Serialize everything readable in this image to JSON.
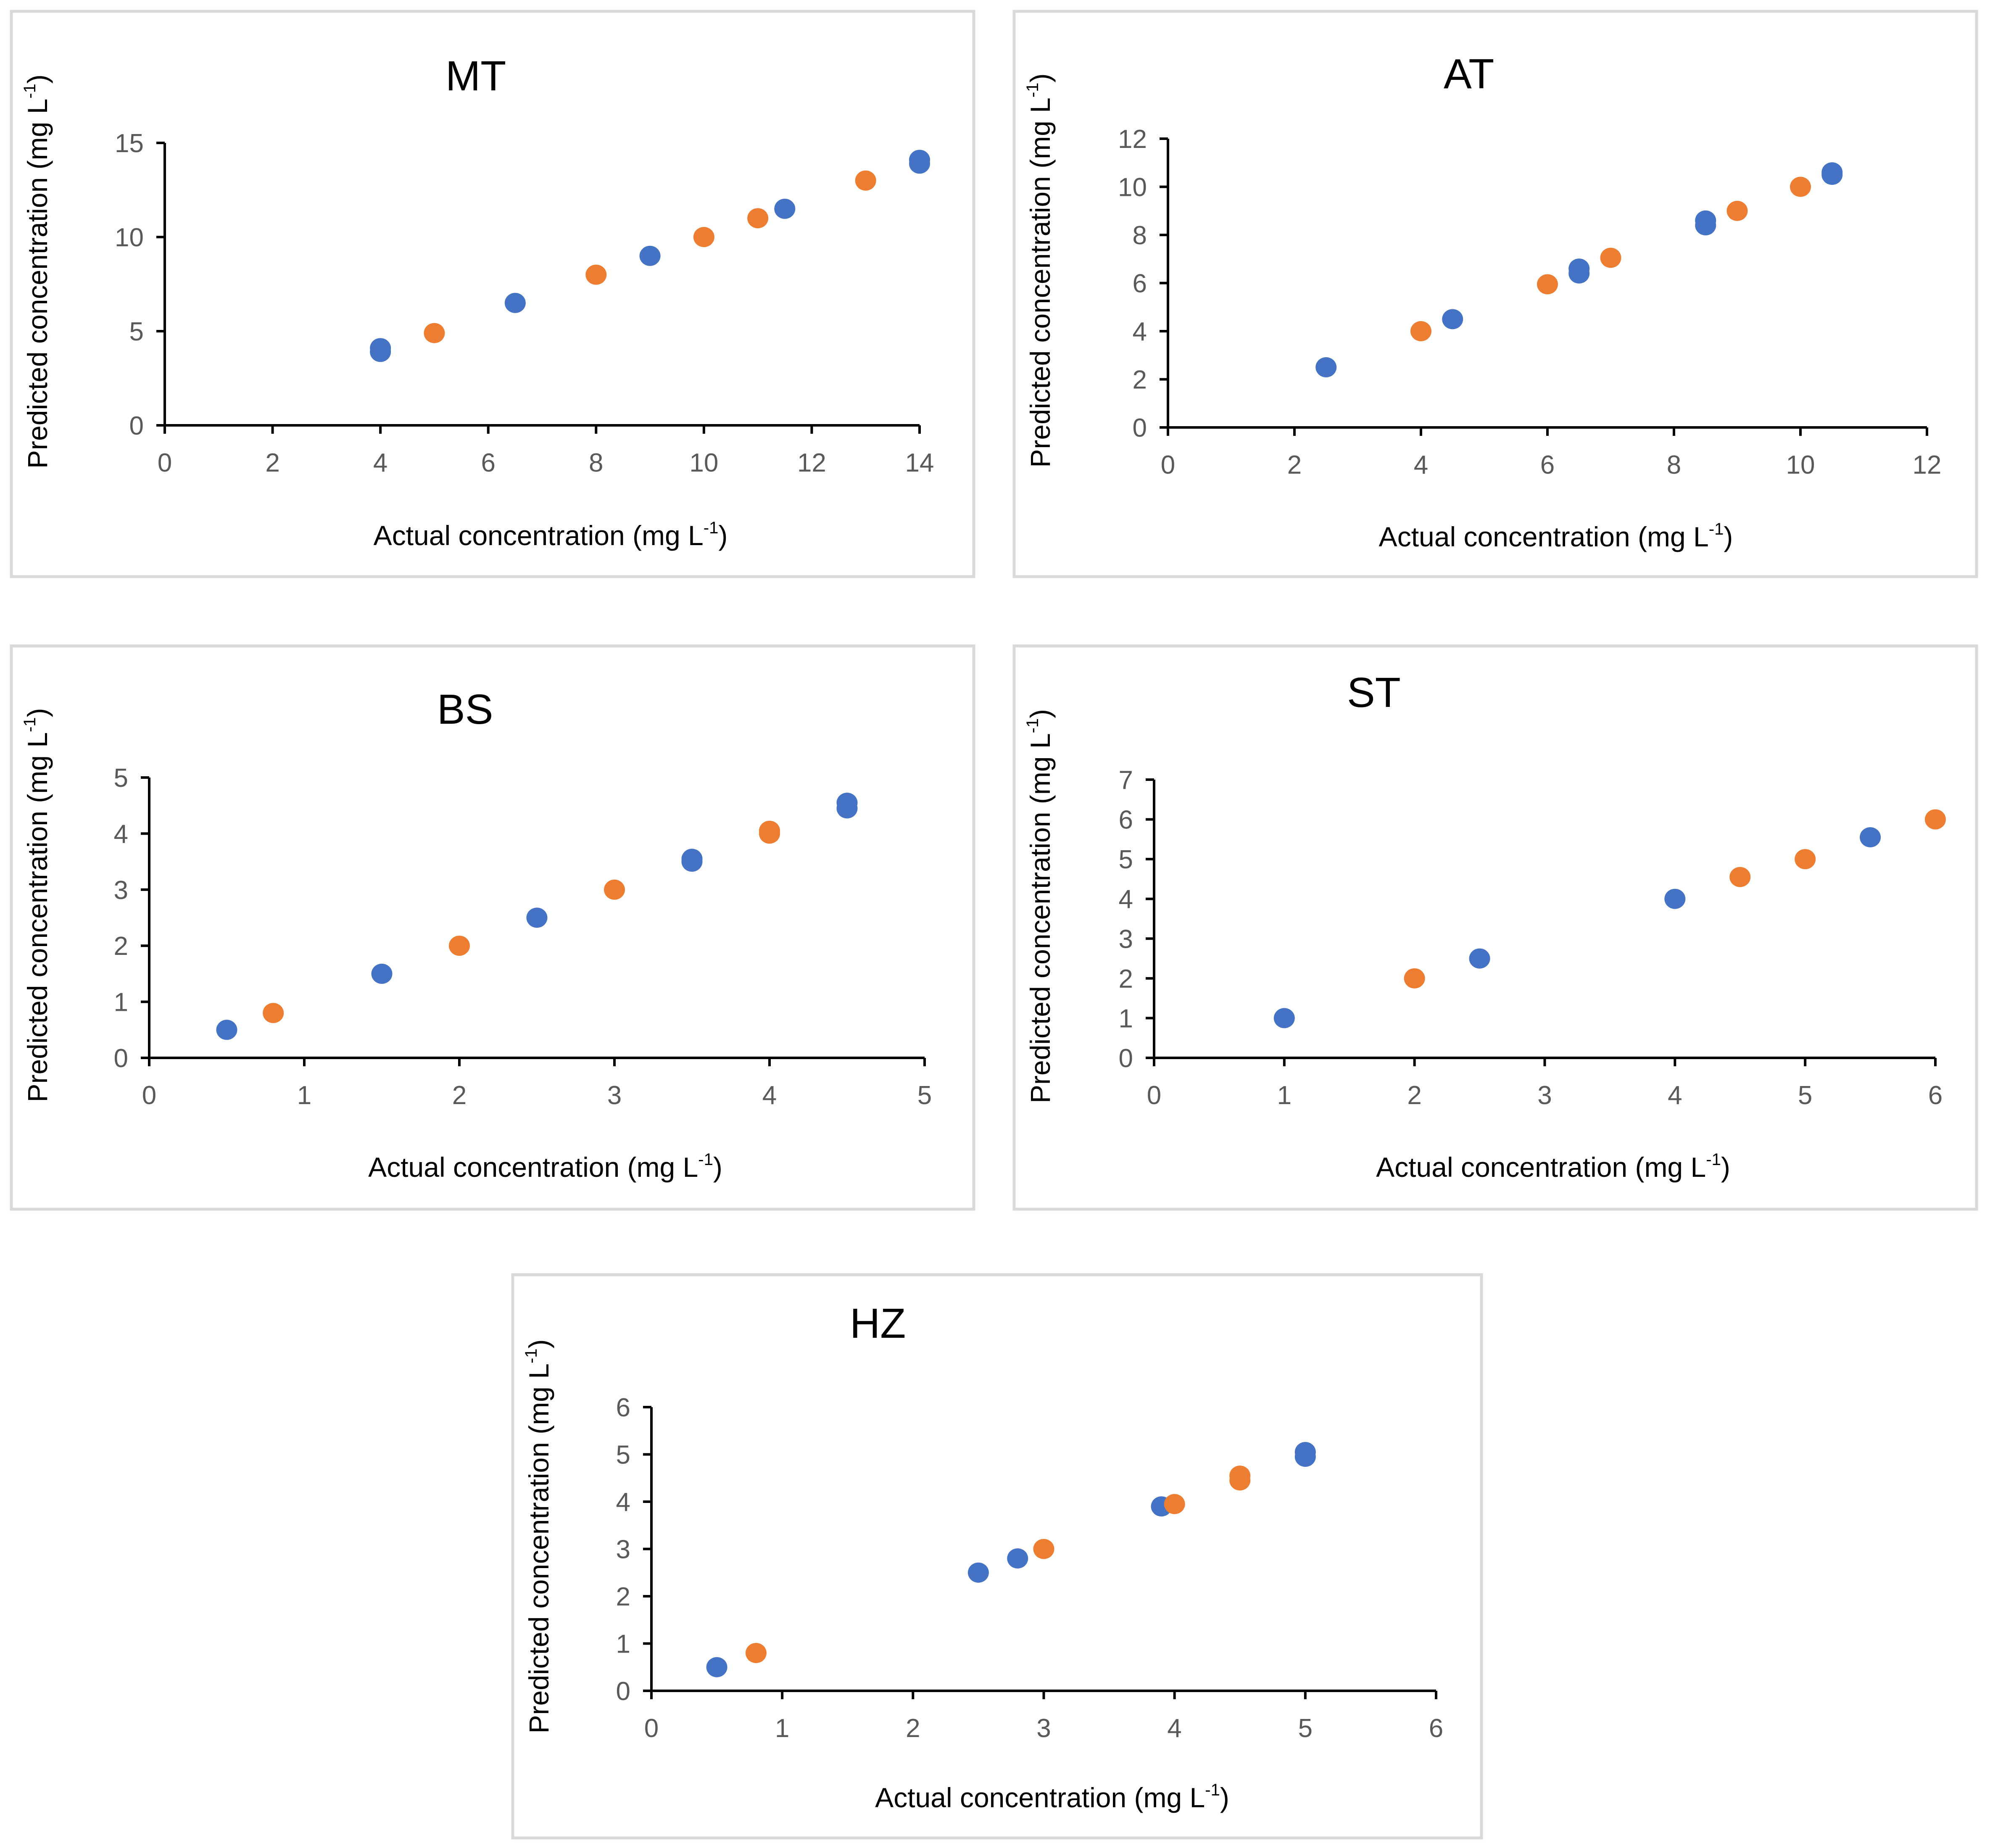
{
  "figure": {
    "colors": {
      "series_a": "#4472C4",
      "series_b": "#ED7D31"
    }
  },
  "chart_data": [
    {
      "type": "scatter",
      "title": "MT",
      "xlabel": "Actual concentration (mg L",
      "ylabel": "Predicted concentration (mg L",
      "label_superscript": "-1",
      "label_close": ")",
      "xlim": [
        0,
        14
      ],
      "ylim": [
        0,
        15
      ],
      "xticks": [
        0,
        2,
        4,
        6,
        8,
        10,
        12,
        14
      ],
      "yticks": [
        0,
        5,
        10,
        15
      ],
      "series": [
        {
          "name": "blue",
          "color": "#4472C4",
          "points": [
            [
              4,
              4.1
            ],
            [
              4,
              3.9
            ],
            [
              6.5,
              6.5
            ],
            [
              9,
              9
            ],
            [
              11.5,
              11.5
            ],
            [
              14,
              14.1
            ],
            [
              14,
              13.9
            ]
          ]
        },
        {
          "name": "orange",
          "color": "#ED7D31",
          "points": [
            [
              5,
              4.9
            ],
            [
              8,
              8
            ],
            [
              10,
              10
            ],
            [
              11,
              11
            ],
            [
              13,
              13
            ]
          ]
        }
      ]
    },
    {
      "type": "scatter",
      "title": "AT",
      "xlabel": "Actual concentration (mg L",
      "ylabel": "Predicted concentration (mg L",
      "label_superscript": "-1",
      "label_close": ")",
      "xlim": [
        0,
        12
      ],
      "ylim": [
        0,
        12
      ],
      "xticks": [
        0,
        2,
        4,
        6,
        8,
        10,
        12
      ],
      "yticks": [
        0,
        2,
        4,
        6,
        8,
        10,
        12
      ],
      "series": [
        {
          "name": "blue",
          "color": "#4472C4",
          "points": [
            [
              2.5,
              2.5
            ],
            [
              4.5,
              4.5
            ],
            [
              6.5,
              6.6
            ],
            [
              6.5,
              6.4
            ],
            [
              8.5,
              8.6
            ],
            [
              8.5,
              8.4
            ],
            [
              10.5,
              10.6
            ],
            [
              10.5,
              10.5
            ]
          ]
        },
        {
          "name": "orange",
          "color": "#ED7D31",
          "points": [
            [
              4,
              4
            ],
            [
              6,
              5.95
            ],
            [
              7,
              7.05
            ],
            [
              9,
              9
            ],
            [
              10,
              10
            ]
          ]
        }
      ]
    },
    {
      "type": "scatter",
      "title": "BS",
      "xlabel": "Actual concentration (mg L",
      "ylabel": "Predicted concentration (mg L",
      "label_superscript": "-1",
      "label_close": ")",
      "xlim": [
        0,
        5
      ],
      "ylim": [
        0,
        5
      ],
      "xticks": [
        0,
        1,
        2,
        3,
        4,
        5
      ],
      "yticks": [
        0,
        1,
        2,
        3,
        4,
        5
      ],
      "series": [
        {
          "name": "blue",
          "color": "#4472C4",
          "points": [
            [
              0.5,
              0.5
            ],
            [
              1.5,
              1.5
            ],
            [
              2.5,
              2.5
            ],
            [
              3.5,
              3.55
            ],
            [
              3.5,
              3.5
            ],
            [
              4.5,
              4.55
            ],
            [
              4.5,
              4.45
            ]
          ]
        },
        {
          "name": "orange",
          "color": "#ED7D31",
          "points": [
            [
              0.8,
              0.8
            ],
            [
              2,
              2
            ],
            [
              3,
              3
            ],
            [
              4,
              4.05
            ],
            [
              4,
              4
            ]
          ]
        }
      ]
    },
    {
      "type": "scatter",
      "title": "ST",
      "xlabel": "Actual concentration (mg L",
      "ylabel": "Predicted concentration (mg L",
      "label_superscript": "-1",
      "label_close": ")",
      "xlim": [
        0,
        6
      ],
      "ylim": [
        0,
        7
      ],
      "xticks": [
        0,
        1,
        2,
        3,
        4,
        5,
        6
      ],
      "yticks": [
        0,
        1,
        2,
        3,
        4,
        5,
        6,
        7
      ],
      "series": [
        {
          "name": "blue",
          "color": "#4472C4",
          "points": [
            [
              1,
              1
            ],
            [
              2.5,
              2.5
            ],
            [
              4,
              4
            ],
            [
              5.5,
              5.55
            ]
          ]
        },
        {
          "name": "orange",
          "color": "#ED7D31",
          "points": [
            [
              2,
              2
            ],
            [
              4.5,
              4.55
            ],
            [
              5,
              5
            ],
            [
              6,
              6
            ]
          ]
        }
      ]
    },
    {
      "type": "scatter",
      "title": "HZ",
      "xlabel": "Actual concentration (mg L",
      "ylabel": "Predicted concentration (mg L",
      "label_superscript": "-1",
      "label_close": ")",
      "xlim": [
        0,
        6
      ],
      "ylim": [
        0,
        6
      ],
      "xticks": [
        0,
        1,
        2,
        3,
        4,
        5,
        6
      ],
      "yticks": [
        0,
        1,
        2,
        3,
        4,
        5,
        6
      ],
      "series": [
        {
          "name": "blue",
          "color": "#4472C4",
          "points": [
            [
              0.5,
              0.5
            ],
            [
              2.5,
              2.5
            ],
            [
              2.8,
              2.8
            ],
            [
              3.9,
              3.9
            ],
            [
              5,
              5.05
            ],
            [
              5,
              4.95
            ]
          ]
        },
        {
          "name": "orange",
          "color": "#ED7D31",
          "points": [
            [
              0.8,
              0.8
            ],
            [
              3,
              3
            ],
            [
              4,
              3.95
            ],
            [
              4.5,
              4.55
            ],
            [
              4.5,
              4.45
            ]
          ]
        }
      ]
    }
  ]
}
